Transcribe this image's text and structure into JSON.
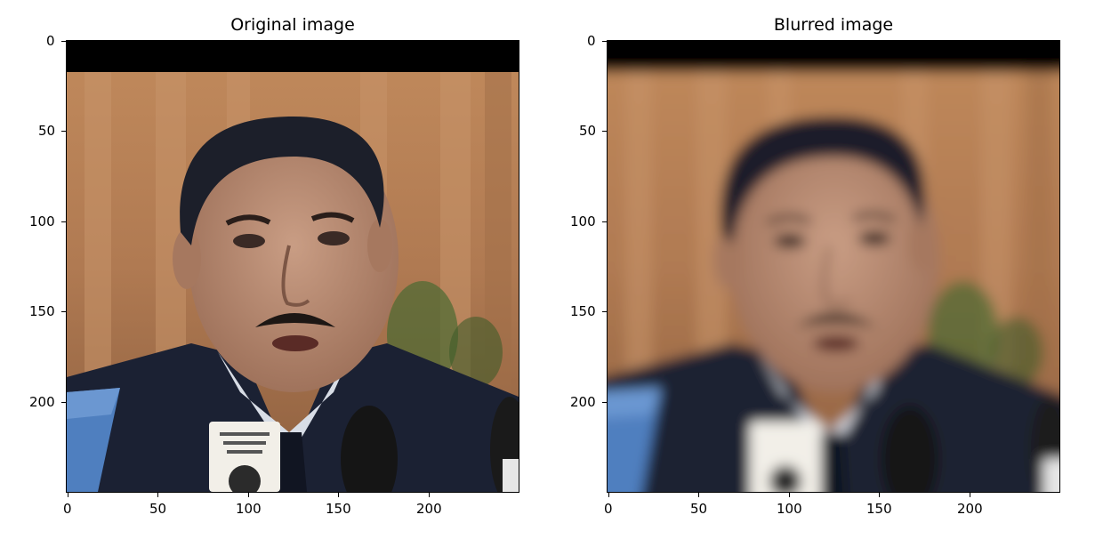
{
  "panels": [
    {
      "title": "Original image",
      "y_ticks": [
        "0",
        "50",
        "100",
        "150",
        "200"
      ],
      "x_ticks": [
        "0",
        "50",
        "100",
        "150",
        "200"
      ],
      "blurred": false
    },
    {
      "title": "Blurred image",
      "y_ticks": [
        "0",
        "50",
        "100",
        "150",
        "200"
      ],
      "x_ticks": [
        "0",
        "50",
        "100",
        "150",
        "200"
      ],
      "blurred": true
    }
  ],
  "colors": {
    "background_wall": "#b07a52",
    "top_band": "#000000",
    "suit": "#1b2133",
    "skin": "#b98a72",
    "hair": "#1c1f2a",
    "shirt": "#d8dde6",
    "mic_white": "#f2efe8",
    "mic_blue": "#4f7fbf"
  }
}
